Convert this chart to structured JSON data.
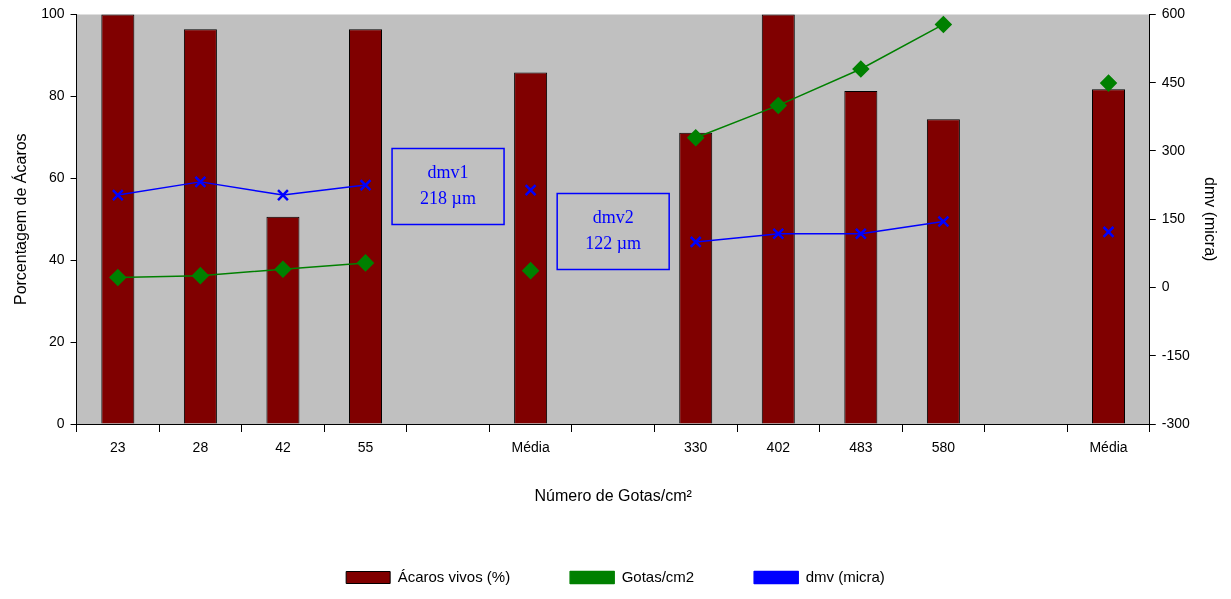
{
  "chart_data": {
    "type": "bar",
    "xlabel": "Número de Gotas/cm²",
    "ylabel": "Porcentagem de Ácaros",
    "y2label": "dmv (micra)",
    "categories": [
      "23",
      "28",
      "42",
      "55",
      null,
      "Média",
      null,
      "330",
      "402",
      "483",
      "580",
      null,
      "Média"
    ],
    "series": [
      {
        "name": "Ácaros vivos (%)",
        "color": "#800000",
        "values": [
          100,
          96.4,
          50.6,
          96.4,
          null,
          85.8,
          null,
          71.1,
          100,
          81.3,
          74.4,
          null,
          81.7
        ]
      },
      {
        "name": "Gotas/cm2",
        "type": "line",
        "axis": "y2",
        "color": "#008000",
        "marker": "diamond",
        "values": [
          22,
          26,
          40,
          54,
          null,
          37,
          null,
          329,
          400,
          480,
          578,
          null,
          449
        ]
      },
      {
        "name": "dmv (micra)",
        "type": "line",
        "axis": "y2",
        "color": "#0000ff",
        "marker": "cross",
        "values": [
          203,
          232,
          203,
          225,
          null,
          214,
          null,
          100,
          118,
          118,
          145,
          null,
          122
        ]
      }
    ],
    "ylim": [
      0,
      100
    ],
    "yticks": [
      0,
      20,
      40,
      60,
      80,
      100
    ],
    "y2lim": [
      -300,
      600
    ],
    "y2ticks": [
      -300,
      -150,
      0,
      150,
      300,
      450,
      600
    ],
    "annotations": [
      "dmv1\n218 µm",
      "dmv2\n122 µm"
    ],
    "legend": "bottom",
    "grid": false
  }
}
